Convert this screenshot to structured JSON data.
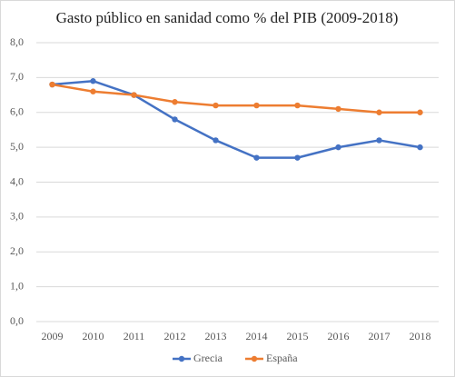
{
  "chart_data": {
    "type": "line",
    "title": "Gasto público  en sanidad como % del PIB (2009-2018)",
    "categories": [
      "2009",
      "2010",
      "2011",
      "2012",
      "2013",
      "2014",
      "2015",
      "2016",
      "2017",
      "2018"
    ],
    "series": [
      {
        "name": "Grecia",
        "color": "#4472c4",
        "values": [
          6.8,
          6.9,
          6.5,
          5.8,
          5.2,
          4.7,
          4.7,
          5.0,
          5.2,
          5.0
        ]
      },
      {
        "name": "España",
        "color": "#ed7d31",
        "values": [
          6.8,
          6.6,
          6.5,
          6.3,
          6.2,
          6.2,
          6.2,
          6.1,
          6.0,
          6.0
        ]
      }
    ],
    "ylim": [
      0,
      8
    ],
    "yticks": [
      {
        "value": 0,
        "label": "0,0"
      },
      {
        "value": 1,
        "label": "1,0"
      },
      {
        "value": 2,
        "label": "2,0"
      },
      {
        "value": 3,
        "label": "3,0"
      },
      {
        "value": 4,
        "label": "4,0"
      },
      {
        "value": 5,
        "label": "5,0"
      },
      {
        "value": 6,
        "label": "6,0"
      },
      {
        "value": 7,
        "label": "7,0"
      },
      {
        "value": 8,
        "label": "8,0"
      }
    ],
    "grid": true,
    "legend": "bottom"
  }
}
